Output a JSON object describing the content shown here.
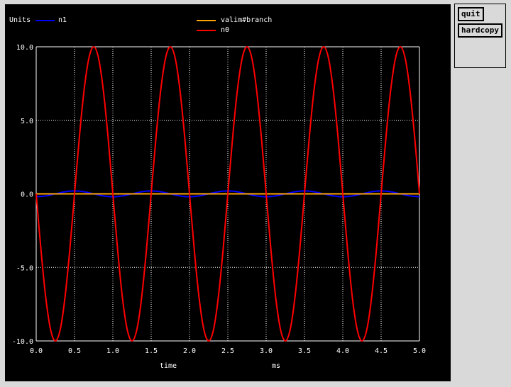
{
  "buttons": {
    "quit": "quit",
    "hardcopy": "hardcopy"
  },
  "colors": {
    "background": "#000000",
    "grid": "#ffffff",
    "text": "#ffffff",
    "panel": "#d9d9d9"
  },
  "chart_data": {
    "type": "line",
    "ylabel": "Units",
    "xlabel": "time",
    "x_unit": "ms",
    "xlim": [
      0,
      5
    ],
    "ylim": [
      -10,
      10
    ],
    "grid": true,
    "legend_position": "top",
    "x_ticks": [
      "0.0",
      "0.5",
      "1.0",
      "1.5",
      "2.0",
      "2.5",
      "3.0",
      "3.5",
      "4.0",
      "4.5",
      "5.0"
    ],
    "y_ticks": [
      "-10.0",
      "-5.0",
      "0.0",
      "5.0",
      "10.0"
    ],
    "series": [
      {
        "name": "n1",
        "color": "#0000ff",
        "x": [
          0,
          0.125,
          0.25,
          0.375,
          0.5,
          0.625,
          0.75,
          0.875,
          1.0,
          1.125,
          1.25,
          1.375,
          1.5,
          1.625,
          1.75,
          1.875,
          2.0,
          2.125,
          2.25,
          2.375,
          2.5,
          2.625,
          2.75,
          2.875,
          3.0,
          3.125,
          3.25,
          3.375,
          3.5,
          3.625,
          3.75,
          3.875,
          4.0,
          4.125,
          4.25,
          4.375,
          4.5,
          4.625,
          4.75,
          4.875,
          5.0
        ],
        "y": [
          -0.2,
          -0.14,
          0.0,
          0.14,
          0.2,
          0.14,
          0.0,
          -0.14,
          -0.2,
          -0.14,
          0.0,
          0.14,
          0.2,
          0.14,
          0.0,
          -0.14,
          -0.2,
          -0.14,
          0.0,
          0.14,
          0.2,
          0.14,
          0.0,
          -0.14,
          -0.2,
          -0.14,
          0.0,
          0.14,
          0.2,
          0.14,
          0.0,
          -0.14,
          -0.2,
          -0.14,
          0.0,
          0.14,
          0.2,
          0.14,
          0.0,
          -0.14,
          -0.2
        ]
      },
      {
        "name": "valim#branch",
        "color": "#ffa500",
        "x": [
          0,
          5.0
        ],
        "y": [
          0.0,
          0.0
        ]
      },
      {
        "name": "n0",
        "color": "#ff0000",
        "x": [
          0,
          0.0625,
          0.125,
          0.1875,
          0.25,
          0.3125,
          0.375,
          0.4375,
          0.5,
          0.5625,
          0.625,
          0.6875,
          0.75,
          0.8125,
          0.875,
          0.9375,
          1.0,
          1.0625,
          1.125,
          1.1875,
          1.25,
          1.3125,
          1.375,
          1.4375,
          1.5,
          1.5625,
          1.625,
          1.6875,
          1.75,
          1.8125,
          1.875,
          1.9375,
          2.0,
          2.0625,
          2.125,
          2.1875,
          2.25,
          2.3125,
          2.375,
          2.4375,
          2.5,
          2.5625,
          2.625,
          2.6875,
          2.75,
          2.8125,
          2.875,
          2.9375,
          3.0,
          3.0625,
          3.125,
          3.1875,
          3.25,
          3.3125,
          3.375,
          3.4375,
          3.5,
          3.5625,
          3.625,
          3.6875,
          3.75,
          3.8125,
          3.875,
          3.9375,
          4.0,
          4.0625,
          4.125,
          4.1875,
          4.25,
          4.3125,
          4.375,
          4.4375,
          4.5,
          4.5625,
          4.625,
          4.6875,
          4.75,
          4.8125,
          4.875,
          4.9375,
          5.0
        ],
        "y": [
          0.0,
          -3.83,
          -7.07,
          -9.24,
          -10.0,
          -9.24,
          -7.07,
          -3.83,
          0.0,
          3.83,
          7.07,
          9.24,
          10.0,
          9.24,
          7.07,
          3.83,
          0.0,
          -3.83,
          -7.07,
          -9.24,
          -10.0,
          -9.24,
          -7.07,
          -3.83,
          0.0,
          3.83,
          7.07,
          9.24,
          10.0,
          9.24,
          7.07,
          3.83,
          0.0,
          -3.83,
          -7.07,
          -9.24,
          -10.0,
          -9.24,
          -7.07,
          -3.83,
          0.0,
          3.83,
          7.07,
          9.24,
          10.0,
          9.24,
          7.07,
          3.83,
          0.0,
          -3.83,
          -7.07,
          -9.24,
          -10.0,
          -9.24,
          -7.07,
          -3.83,
          0.0,
          3.83,
          7.07,
          9.24,
          10.0,
          9.24,
          7.07,
          3.83,
          0.0,
          -3.83,
          -7.07,
          -9.24,
          -10.0,
          -9.24,
          -7.07,
          -3.83,
          0.0,
          3.83,
          7.07,
          9.24,
          10.0,
          9.24,
          7.07,
          3.83,
          0.0
        ]
      }
    ]
  }
}
